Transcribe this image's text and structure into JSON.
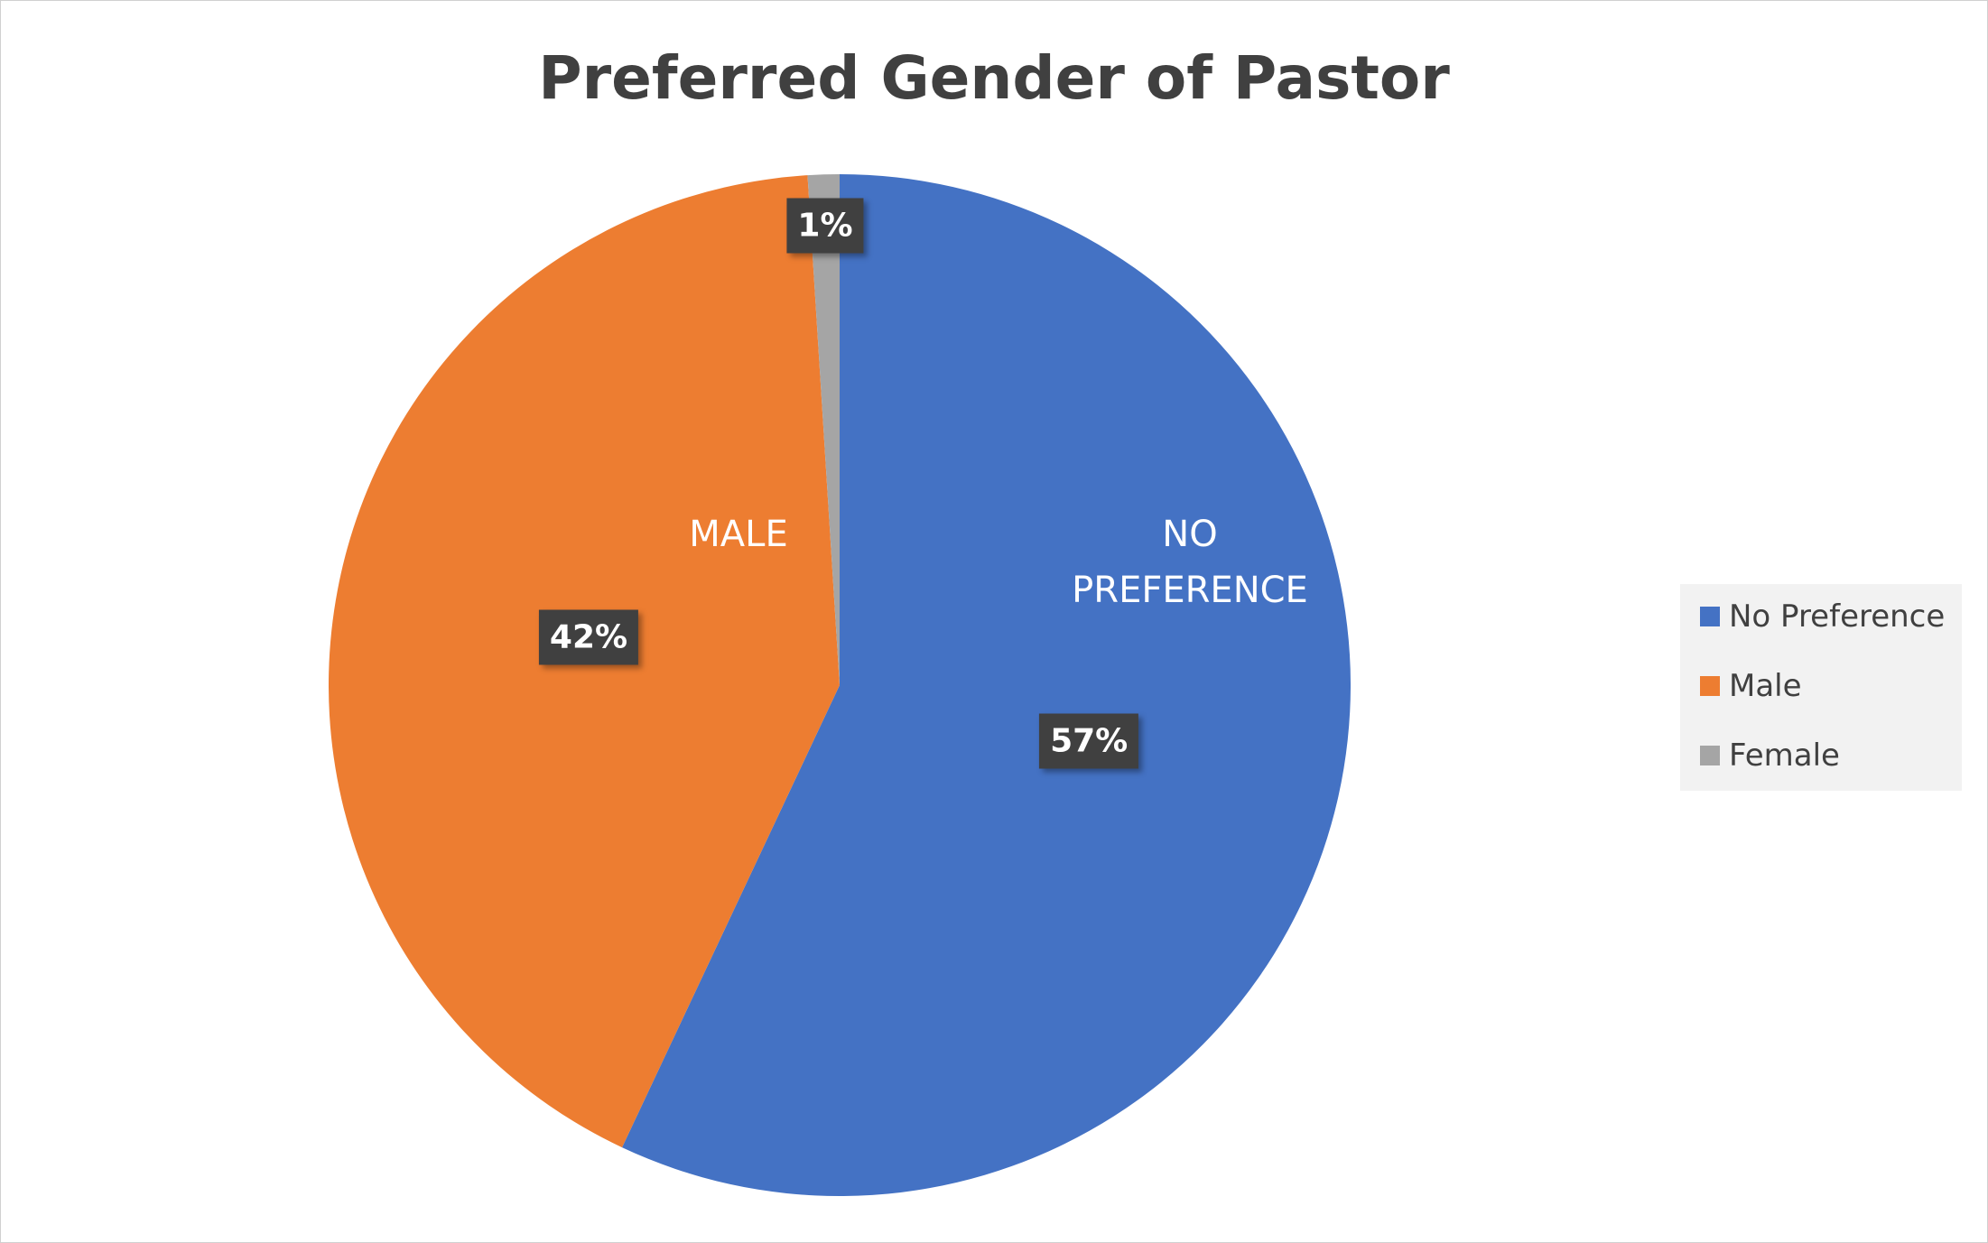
{
  "chart_data": {
    "type": "pie",
    "title": "Preferred Gender of Pastor",
    "categories": [
      "No Preference",
      "Male",
      "Female"
    ],
    "values": [
      57,
      42,
      1
    ],
    "value_labels": [
      "57%",
      "42%",
      "1%"
    ],
    "slice_labels": [
      "NO PREFERENCE",
      "MALE",
      null
    ],
    "colors": [
      "#4472c4",
      "#ed7d31",
      "#a5a5a5"
    ],
    "legend": "right"
  }
}
